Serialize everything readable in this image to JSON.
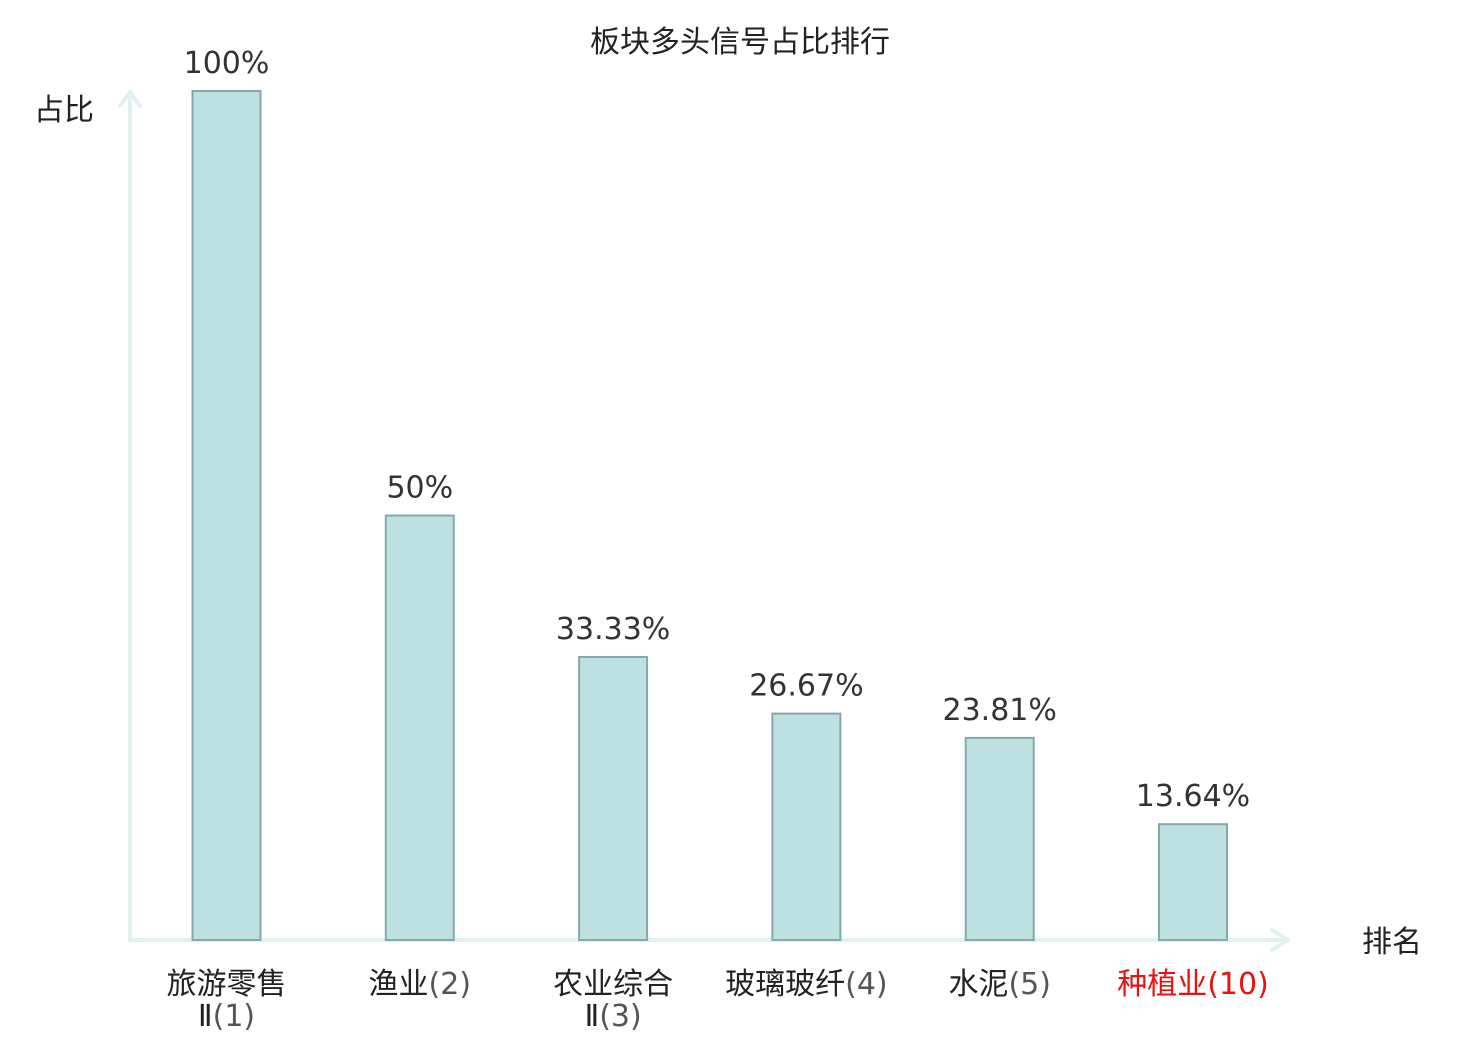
{
  "chart_data": {
    "type": "bar",
    "title": "板块多头信号占比排行",
    "ylabel": "占比",
    "xlabel": "排名",
    "ylim": [
      0,
      100
    ],
    "grid": false,
    "value_suffix": "%",
    "categories": [
      {
        "name": [
          "旅游零售",
          "Ⅱ"
        ],
        "rank": "(1)",
        "highlight": false
      },
      {
        "name": [
          "渔业"
        ],
        "rank": "(2)",
        "highlight": false
      },
      {
        "name": [
          "农业综合",
          "Ⅱ"
        ],
        "rank": "(3)",
        "highlight": false
      },
      {
        "name": [
          "玻璃玻纤"
        ],
        "rank": "(4)",
        "highlight": false
      },
      {
        "name": [
          "水泥"
        ],
        "rank": "(5)",
        "highlight": false
      },
      {
        "name": [
          "种植业"
        ],
        "rank": "(10)",
        "highlight": true
      }
    ],
    "values": [
      100,
      50,
      33.33,
      26.67,
      23.81,
      13.64
    ],
    "value_labels": [
      "100%",
      "50%",
      "33.33%",
      "26.67%",
      "23.81%",
      "13.64%"
    ],
    "colors": {
      "bar_fill": "#bde0e3",
      "bar_stroke": "#86a8ab",
      "axis": "#e0f2f0",
      "highlight_text": "#e8130f"
    }
  }
}
